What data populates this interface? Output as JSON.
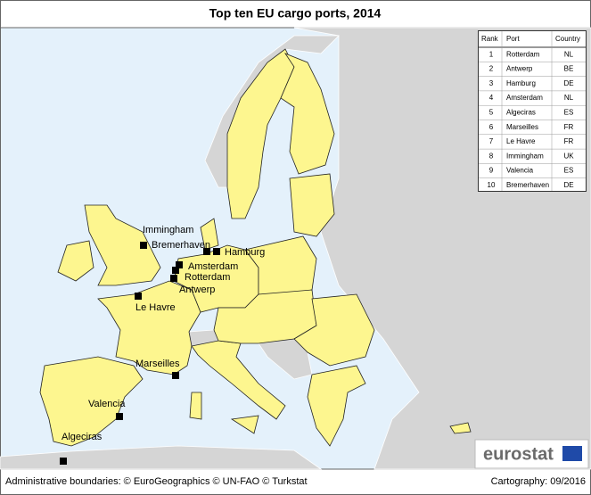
{
  "title": "Top ten EU cargo ports, 2014",
  "table": {
    "header": [
      "Rank",
      "Port",
      "Country"
    ],
    "rows": [
      [
        1,
        "Rotterdam",
        "NL"
      ],
      [
        2,
        "Antwerp",
        "BE"
      ],
      [
        3,
        "Hamburg",
        "DE"
      ],
      [
        4,
        "Amsterdam",
        "NL"
      ],
      [
        5,
        "Algeciras",
        "ES"
      ],
      [
        6,
        "Marseilles",
        "FR"
      ],
      [
        7,
        "Le Havre",
        "FR"
      ],
      [
        8,
        "Immingham",
        "UK"
      ],
      [
        9,
        "Valencia",
        "ES"
      ],
      [
        10,
        "Bremerhaven",
        "DE"
      ]
    ]
  },
  "ports": [
    "Immingham",
    "Bremerhaven",
    "Hamburg",
    "Amsterdam",
    "Rotterdam",
    "Antwerp",
    "Le Havre",
    "Marseilles",
    "Valencia",
    "Algeciras"
  ],
  "logo": "eurostat",
  "footer": {
    "left": "Administrative boundaries: © EuroGeographics © UN-FAO © Turkstat",
    "right": "Cartography: 09/2016"
  }
}
